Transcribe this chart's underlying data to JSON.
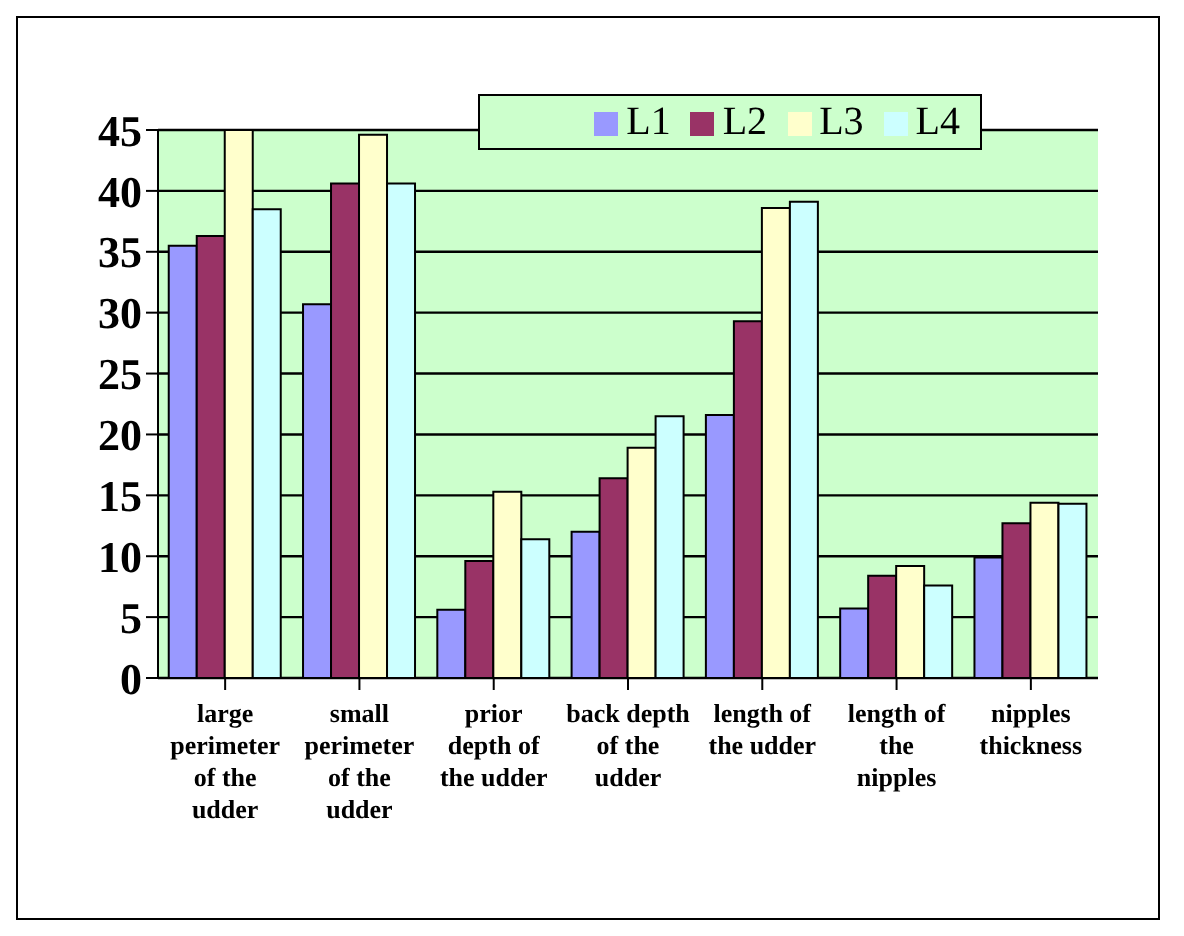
{
  "chart_data": {
    "type": "bar",
    "categories": [
      "large perimeter of the udder",
      "small perimeter of the udder",
      "prior depth of the udder",
      "back depth of the udder",
      "length of the udder",
      "length of the nipples",
      "nipples thickness"
    ],
    "series": [
      {
        "name": "L1",
        "color": "#9999ff",
        "values": [
          35.5,
          30.7,
          5.6,
          12.0,
          21.6,
          5.7,
          9.9
        ]
      },
      {
        "name": "L2",
        "color": "#993366",
        "values": [
          36.3,
          40.6,
          9.6,
          16.4,
          29.3,
          8.4,
          12.7
        ]
      },
      {
        "name": "L3",
        "color": "#ffffcc",
        "values": [
          45,
          44.6,
          15.3,
          18.9,
          38.6,
          9.2,
          14.4
        ]
      },
      {
        "name": "L4",
        "color": "#ccffff",
        "values": [
          38.5,
          40.6,
          11.4,
          21.5,
          39.1,
          7.6,
          14.3
        ]
      }
    ],
    "ylim": [
      0,
      45
    ],
    "yticks": [
      0,
      5,
      10,
      15,
      20,
      25,
      30,
      35,
      40,
      45
    ],
    "grid": "y",
    "legend": "top right"
  }
}
